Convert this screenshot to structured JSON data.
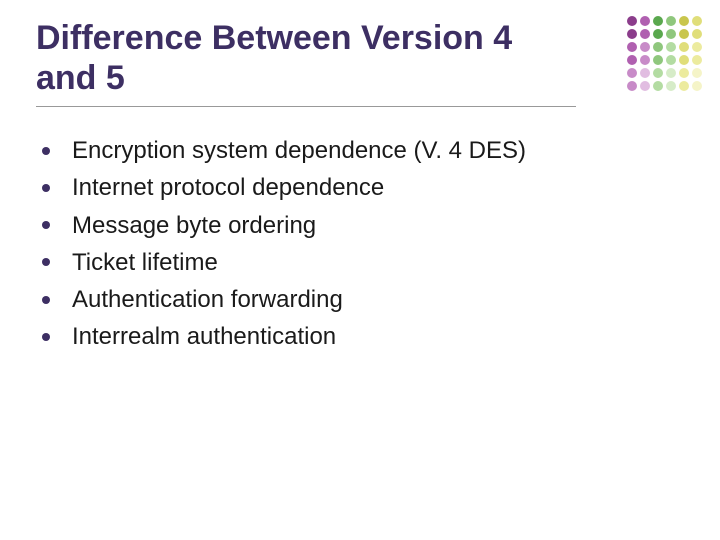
{
  "slide": {
    "title": "Difference Between Version 4 and 5",
    "title_color": "#3d2f63",
    "title_fontsize": 34,
    "title_fontweight": 700,
    "title_underline_color": "#999999",
    "background_color": "#ffffff",
    "bullets": {
      "marker_color": "#3d2f63",
      "marker_shape": "circle",
      "marker_size": 8,
      "text_color": "#1a1a1a",
      "text_fontsize": 24,
      "items": [
        "Encryption system dependence (V. 4 DES)",
        "Internet protocol dependence",
        "Message byte ordering",
        "Ticket lifetime",
        "Authentication forwarding",
        "Interrealm authentication"
      ]
    },
    "decoration": {
      "type": "dot-grid",
      "position": "top-right",
      "cols": 6,
      "rows": 6,
      "dot_size": 10,
      "gap": 3,
      "palette": [
        "#8b3d8b",
        "#b060b0",
        "#5aa84e",
        "#8fc77d",
        "#c9c64d",
        "#e0de7a",
        "#8b3d8b",
        "#b060b0",
        "#5aa84e",
        "#8fc77d",
        "#c9c64d",
        "#e0de7a",
        "#b060b0",
        "#c88bc8",
        "#8fc77d",
        "#b3dca2",
        "#e0de7a",
        "#eceb9e",
        "#b060b0",
        "#c88bc8",
        "#8fc77d",
        "#b3dca2",
        "#e0de7a",
        "#eceb9e",
        "#c88bc8",
        "#e1bde1",
        "#b3dca2",
        "#d6ecc8",
        "#eceb9e",
        "#f5f4c8",
        "#c88bc8",
        "#e1bde1",
        "#b3dca2",
        "#d6ecc8",
        "#eceb9e",
        "#f5f4c8"
      ]
    }
  }
}
